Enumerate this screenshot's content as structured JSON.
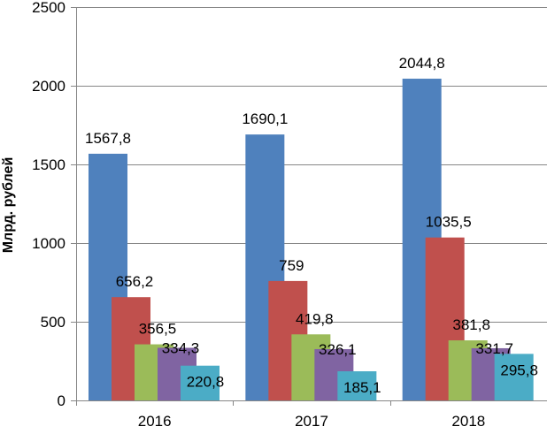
{
  "chart_data": {
    "type": "bar",
    "title": "",
    "xlabel": "",
    "ylabel": "Млрд. рублей",
    "ylim": [
      0,
      2500
    ],
    "yticks": [
      0,
      500,
      1000,
      1500,
      2000,
      2500
    ],
    "ytick_labels": [
      "0",
      "500",
      "1000",
      "1500",
      "2000",
      "2500"
    ],
    "grid": true,
    "legend": "none",
    "categories": [
      "2016",
      "2017",
      "2018"
    ],
    "series": [
      {
        "name": "series-1",
        "color": "#4F81BD",
        "values": [
          1567.8,
          1690.1,
          2044.8
        ],
        "labels": [
          "1567,8",
          "1690,1",
          "2044,8"
        ]
      },
      {
        "name": "series-2",
        "color": "#C0504D",
        "values": [
          656.2,
          759,
          1035.5
        ],
        "labels": [
          "656,2",
          "759",
          "1035,5"
        ]
      },
      {
        "name": "series-3",
        "color": "#9BBB59",
        "values": [
          356.5,
          419.8,
          381.8
        ],
        "labels": [
          "356,5",
          "419,8",
          "381,8"
        ]
      },
      {
        "name": "series-4",
        "color": "#8064A2",
        "values": [
          334.3,
          326.1,
          331.7
        ],
        "labels": [
          "334,3",
          "326,1",
          "331,7"
        ]
      },
      {
        "name": "series-5",
        "color": "#4BACC6",
        "values": [
          220.8,
          185.1,
          295.8
        ],
        "labels": [
          "220,8",
          "185,1",
          "295,8"
        ]
      }
    ]
  }
}
